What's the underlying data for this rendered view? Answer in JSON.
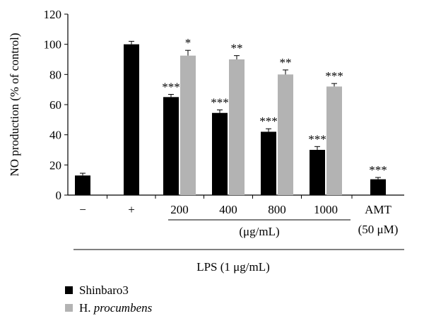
{
  "chart_data": {
    "type": "bar",
    "ylabel": "NO production (% of control)",
    "ylim": [
      0,
      120
    ],
    "yticks": [
      0,
      20,
      40,
      60,
      80,
      100,
      120
    ],
    "grid": false,
    "legend_position": "bottom-left",
    "categories": [
      "−",
      "+",
      "200",
      "400",
      "800",
      "1000",
      "AMT"
    ],
    "category_sublabels": [
      "",
      "",
      "",
      "",
      "",
      "",
      "(50 μM)"
    ],
    "group_label": "(μg/mL)",
    "outer_label": "LPS (1 μg/mL)",
    "series": [
      {
        "name": "Shinbaro3",
        "color": "#000000",
        "values": [
          13,
          100,
          65,
          54.5,
          42,
          30,
          10.5
        ],
        "errors": [
          1.5,
          2,
          1.8,
          2,
          2,
          2.2,
          1.2
        ],
        "annotations": [
          "",
          "",
          "***",
          "***",
          "***",
          "***",
          "***"
        ]
      },
      {
        "name": "H. procumbens",
        "color": "#b3b3b3",
        "values": [
          null,
          null,
          92.5,
          90,
          80,
          72,
          null
        ],
        "errors": [
          null,
          null,
          3.5,
          2.5,
          3,
          2,
          null
        ],
        "annotations": [
          "",
          "",
          "*",
          "**",
          "**",
          "***",
          ""
        ]
      }
    ]
  }
}
